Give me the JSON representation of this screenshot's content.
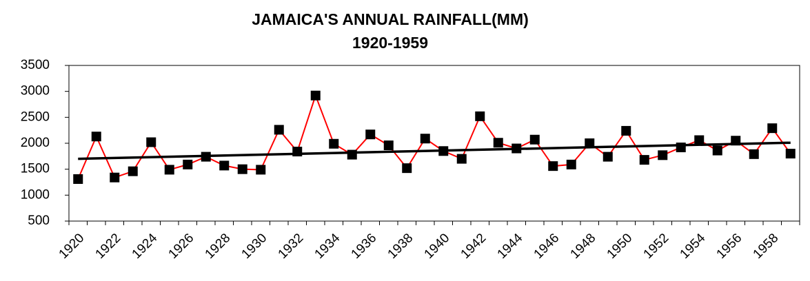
{
  "chart_data": {
    "type": "line",
    "title": "JAMAICA'S ANNUAL RAINFALL(MM)",
    "subtitle": "1920-1959",
    "categories": [
      "1920",
      null,
      "1922",
      null,
      "1924",
      null,
      "1926",
      null,
      "1928",
      null,
      "1930",
      null,
      "1932",
      null,
      "1934",
      null,
      "1936",
      null,
      "1938",
      null,
      "1940",
      null,
      "1942",
      null,
      "1944",
      null,
      "1946",
      null,
      "1948",
      null,
      "1950",
      null,
      "1952",
      null,
      "1954",
      null,
      "1956",
      null,
      "1958",
      null
    ],
    "series": [
      {
        "color": "#ff0000",
        "marker_color": "#000000",
        "values": [
          1310,
          2130,
          1340,
          1460,
          2020,
          1490,
          1590,
          1740,
          1570,
          1500,
          1490,
          2260,
          1840,
          2920,
          1990,
          1780,
          2170,
          1960,
          1520,
          2090,
          1850,
          1700,
          2520,
          2010,
          1900,
          2070,
          1560,
          1590,
          2000,
          1740,
          2240,
          1680,
          1770,
          1920,
          2060,
          1860,
          2050,
          1790,
          2290,
          1800
        ]
      }
    ],
    "trend": [
      1700,
      2010
    ],
    "trend_color": "#000000",
    "ylim": [
      500,
      3500
    ],
    "yticks": [
      500,
      1000,
      1500,
      2000,
      2500,
      3000,
      3500
    ],
    "grid": false
  }
}
